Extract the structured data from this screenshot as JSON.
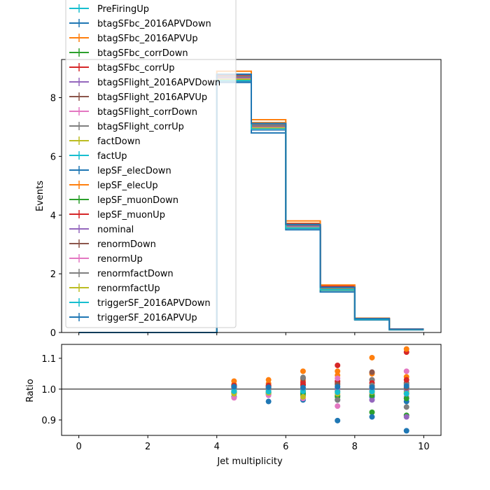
{
  "chart_data": [
    {
      "type": "step",
      "ylabel": "Events",
      "xlim": [
        -0.5,
        10.5
      ],
      "ylim": [
        0,
        9.3
      ],
      "yticks": [
        "0",
        "2",
        "4",
        "6",
        "8"
      ],
      "x_edges": [
        0,
        4,
        5,
        6,
        7,
        8,
        9,
        10
      ],
      "legend_position": "upper left",
      "series": [
        {
          "name": "PreFiringUp",
          "color": "#17becf",
          "values": [
            0,
            8.7,
            7.0,
            3.62,
            1.48,
            0.46,
            0.11
          ]
        },
        {
          "name": "btagSFbc_2016APVDown",
          "color": "#1f77b4",
          "values": [
            0,
            8.55,
            6.9,
            3.55,
            1.44,
            0.45,
            0.1
          ]
        },
        {
          "name": "btagSFbc_2016APVUp",
          "color": "#ff7f0e",
          "values": [
            0,
            8.8,
            7.15,
            3.72,
            1.56,
            0.48,
            0.12
          ]
        },
        {
          "name": "btagSFbc_corrDown",
          "color": "#2ca02c",
          "values": [
            0,
            8.62,
            6.95,
            3.56,
            1.46,
            0.45,
            0.1
          ]
        },
        {
          "name": "btagSFbc_corrUp",
          "color": "#d62728",
          "values": [
            0,
            8.78,
            7.1,
            3.7,
            1.58,
            0.47,
            0.12
          ]
        },
        {
          "name": "btagSFlight_2016APVDown",
          "color": "#9467bd",
          "values": [
            0,
            8.6,
            6.94,
            3.58,
            1.46,
            0.45,
            0.11
          ]
        },
        {
          "name": "btagSFlight_2016APVUp",
          "color": "#8c564b",
          "values": [
            0,
            8.74,
            7.06,
            3.66,
            1.52,
            0.47,
            0.11
          ]
        },
        {
          "name": "btagSFlight_corrDown",
          "color": "#e377c2",
          "values": [
            0,
            8.58,
            6.92,
            3.57,
            1.5,
            0.46,
            0.11
          ]
        },
        {
          "name": "btagSFlight_corrUp",
          "color": "#7f7f7f",
          "values": [
            0,
            8.76,
            7.08,
            3.67,
            1.53,
            0.47,
            0.11
          ]
        },
        {
          "name": "factDown",
          "color": "#bcbd22",
          "values": [
            0,
            8.66,
            7.0,
            3.6,
            1.48,
            0.46,
            0.11
          ]
        },
        {
          "name": "factUp",
          "color": "#17becf",
          "values": [
            0,
            8.68,
            7.01,
            3.61,
            1.49,
            0.46,
            0.11
          ]
        },
        {
          "name": "lepSF_elecDown",
          "color": "#1f77b4",
          "values": [
            0,
            8.52,
            6.8,
            3.5,
            1.38,
            0.43,
            0.09
          ]
        },
        {
          "name": "lepSF_elecUp",
          "color": "#ff7f0e",
          "values": [
            0,
            8.9,
            7.25,
            3.8,
            1.62,
            0.49,
            0.12
          ]
        },
        {
          "name": "lepSF_muonDown",
          "color": "#2ca02c",
          "values": [
            0,
            8.6,
            6.96,
            3.58,
            1.45,
            0.45,
            0.1
          ]
        },
        {
          "name": "lepSF_muonUp",
          "color": "#d62728",
          "values": [
            0,
            8.75,
            7.05,
            3.66,
            1.52,
            0.47,
            0.12
          ]
        },
        {
          "name": "nominal",
          "color": "#9467bd",
          "values": [
            0,
            8.68,
            7.02,
            3.61,
            1.49,
            0.46,
            0.11
          ]
        },
        {
          "name": "renormDown",
          "color": "#8c564b",
          "values": [
            0,
            8.72,
            7.04,
            3.65,
            1.51,
            0.47,
            0.11
          ]
        },
        {
          "name": "renormUp",
          "color": "#e377c2",
          "values": [
            0,
            8.64,
            6.98,
            3.58,
            1.47,
            0.46,
            0.1
          ]
        },
        {
          "name": "renormfactDown",
          "color": "#7f7f7f",
          "values": [
            0,
            8.73,
            7.05,
            3.66,
            1.52,
            0.47,
            0.11
          ]
        },
        {
          "name": "renormfactUp",
          "color": "#bcbd22",
          "values": [
            0,
            8.63,
            6.97,
            3.57,
            1.47,
            0.46,
            0.1
          ]
        },
        {
          "name": "triggerSF_2016APVDown",
          "color": "#17becf",
          "values": [
            0,
            8.58,
            6.93,
            3.56,
            1.46,
            0.45,
            0.1
          ]
        },
        {
          "name": "triggerSF_2016APVUp",
          "color": "#1f77b4",
          "values": [
            0,
            8.8,
            7.12,
            3.68,
            1.54,
            0.47,
            0.11
          ]
        }
      ]
    },
    {
      "type": "scatter",
      "xlabel": "Jet multiplicity",
      "ylabel": "Ratio",
      "xlim": [
        -0.5,
        10.5
      ],
      "ylim": [
        0.85,
        1.145
      ],
      "xticks": [
        "0",
        "2",
        "4",
        "6",
        "8",
        "10"
      ],
      "yticks": [
        "0.9",
        "1.0",
        "1.1"
      ],
      "reference_line": 1.0,
      "x": [
        4.5,
        5.5,
        6.5,
        7.5,
        8.5,
        9.5
      ],
      "series": [
        {
          "name": "PreFiringUp",
          "color": "#17becf",
          "values": [
            1.002,
            0.998,
            1.0,
            0.995,
            1.0,
            0.995
          ]
        },
        {
          "name": "btagSFbc_2016APVDown",
          "color": "#1f77b4",
          "values": [
            0.988,
            0.983,
            0.98,
            0.965,
            0.975,
            0.96
          ]
        },
        {
          "name": "btagSFbc_2016APVUp",
          "color": "#ff7f0e",
          "values": [
            1.015,
            1.018,
            1.028,
            1.045,
            1.05,
            1.04
          ]
        },
        {
          "name": "btagSFbc_corrDown",
          "color": "#2ca02c",
          "values": [
            0.992,
            0.987,
            0.985,
            0.978,
            0.925,
            0.915
          ]
        },
        {
          "name": "btagSFbc_corrUp",
          "color": "#d62728",
          "values": [
            1.01,
            1.012,
            1.022,
            1.077,
            1.03,
            1.12
          ]
        },
        {
          "name": "btagSFlight_2016APVDown",
          "color": "#9467bd",
          "values": [
            0.99,
            0.99,
            0.992,
            0.98,
            0.965,
            0.91
          ]
        },
        {
          "name": "btagSFlight_2016APVUp",
          "color": "#8c564b",
          "values": [
            1.008,
            1.008,
            1.012,
            1.02,
            1.055,
            1.02
          ]
        },
        {
          "name": "btagSFlight_corrDown",
          "color": "#e377c2",
          "values": [
            0.985,
            0.99,
            0.99,
            0.945,
            0.985,
            0.975
          ]
        },
        {
          "name": "btagSFlight_corrUp",
          "color": "#7f7f7f",
          "values": [
            1.01,
            1.01,
            1.015,
            1.025,
            1.03,
            1.015
          ]
        },
        {
          "name": "factDown",
          "color": "#bcbd22",
          "values": [
            0.998,
            0.997,
            0.995,
            0.992,
            0.995,
            0.99
          ]
        },
        {
          "name": "factUp",
          "color": "#17becf",
          "values": [
            1.001,
            1.0,
            1.002,
            1.004,
            1.003,
            1.005
          ]
        },
        {
          "name": "lepSF_elecDown",
          "color": "#1f77b4",
          "values": [
            0.975,
            0.96,
            0.965,
            0.898,
            0.91,
            0.865
          ]
        },
        {
          "name": "lepSF_elecUp",
          "color": "#ff7f0e",
          "values": [
            1.026,
            1.03,
            1.058,
            1.058,
            1.102,
            1.13
          ]
        },
        {
          "name": "lepSF_muonDown",
          "color": "#2ca02c",
          "values": [
            0.99,
            0.99,
            0.988,
            0.975,
            0.98,
            0.97
          ]
        },
        {
          "name": "lepSF_muonUp",
          "color": "#d62728",
          "values": [
            1.012,
            1.01,
            1.015,
            1.025,
            1.02,
            1.03
          ]
        },
        {
          "name": "nominal",
          "color": "#9467bd",
          "values": [
            1.0,
            1.0,
            1.0,
            1.0,
            1.0,
            1.0
          ]
        },
        {
          "name": "renormDown",
          "color": "#8c564b",
          "values": [
            1.005,
            1.003,
            1.035,
            1.015,
            1.01,
            1.005
          ]
        },
        {
          "name": "renormUp",
          "color": "#e377c2",
          "values": [
            0.972,
            0.98,
            0.97,
            1.035,
            0.992,
            1.058
          ]
        },
        {
          "name": "renormfactDown",
          "color": "#7f7f7f",
          "values": [
            1.006,
            1.004,
            1.038,
            0.965,
            1.012,
            0.942
          ]
        },
        {
          "name": "renormfactUp",
          "color": "#bcbd22",
          "values": [
            0.985,
            0.988,
            0.975,
            0.985,
            0.99,
            0.985
          ]
        },
        {
          "name": "triggerSF_2016APVDown",
          "color": "#17becf",
          "values": [
            0.993,
            0.992,
            0.993,
            0.99,
            0.992,
            0.985
          ]
        },
        {
          "name": "triggerSF_2016APVUp",
          "color": "#1f77b4",
          "values": [
            1.008,
            1.006,
            1.005,
            1.008,
            1.006,
            1.01
          ]
        }
      ]
    }
  ]
}
